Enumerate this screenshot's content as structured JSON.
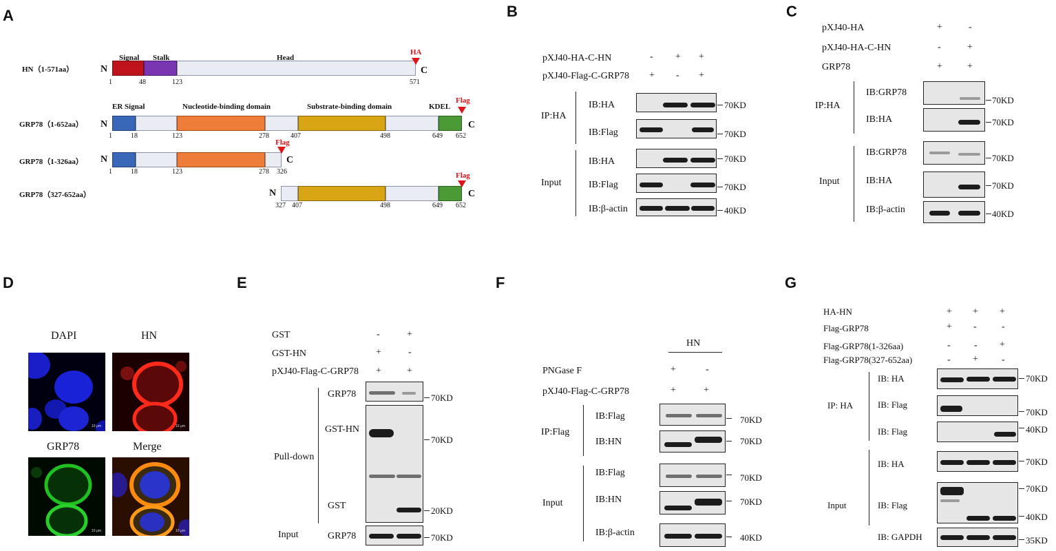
{
  "panels": [
    "A",
    "B",
    "C",
    "D",
    "E",
    "F",
    "G"
  ],
  "panelA": {
    "rows": [
      {
        "label": "HN（1-571aa）",
        "n": "N",
        "c": "C"
      },
      {
        "label": "GRP78（1-652aa）",
        "n": "N",
        "c": "C"
      },
      {
        "label": "GRP78（1-326aa）",
        "n": "N",
        "c": "C"
      },
      {
        "label": "GRP78（327-652aa）",
        "n": "N",
        "c": "C"
      }
    ],
    "hn": {
      "domains": [
        "Signal",
        "Stalk",
        "Head"
      ],
      "tag": "HA",
      "positions": [
        "1",
        "48",
        "123",
        "571"
      ]
    },
    "grp_full": {
      "domains": [
        "ER Signal",
        "Nucleotide-binding domain",
        "Substrate-binding domain",
        "KDEL"
      ],
      "tag": "Flag",
      "positions": [
        "1",
        "18",
        "123",
        "278",
        "407",
        "498",
        "649",
        "652"
      ]
    },
    "grp_n": {
      "tag": "Flag",
      "positions": [
        "1",
        "18",
        "123",
        "278",
        "326"
      ]
    },
    "grp_c": {
      "tag": "Flag",
      "positions": [
        "327",
        "407",
        "498",
        "649",
        "652"
      ]
    }
  },
  "panelB": {
    "conditions": [
      {
        "name": "pXJ40-HA-C-HN",
        "vals": [
          "-",
          "+",
          "+"
        ]
      },
      {
        "name": "pXJ40-Flag-C-GRP78",
        "vals": [
          "+",
          "-",
          "+"
        ]
      }
    ],
    "groups": [
      "IP:HA",
      "Input"
    ],
    "blots": [
      "IB:HA",
      "IB:Flag",
      "IB:HA",
      "IB:Flag",
      "IB:β-actin"
    ],
    "markers": [
      "70KD",
      "70KD",
      "70KD",
      "70KD",
      "40KD"
    ]
  },
  "panelC": {
    "conditions": [
      {
        "name": "pXJ40-HA",
        "vals": [
          "+",
          "-"
        ]
      },
      {
        "name": "pXJ40-HA-C-HN",
        "vals": [
          "-",
          "+"
        ]
      },
      {
        "name": "GRP78",
        "vals": [
          "+",
          "+"
        ]
      }
    ],
    "groups": [
      "IP:HA",
      "Input"
    ],
    "blots": [
      "IB:GRP78",
      "IB:HA",
      "IB:GRP78",
      "IB:HA",
      "IB:β-actin"
    ],
    "markers": [
      "70KD",
      "70KD",
      "70KD",
      "70KD",
      "40KD"
    ]
  },
  "panelD": {
    "titles": [
      "DAPI",
      "HN",
      "GRP78",
      "Merge"
    ],
    "scale": "10 μm"
  },
  "panelE": {
    "conditions": [
      {
        "name": "GST",
        "vals": [
          "-",
          "+"
        ]
      },
      {
        "name": "GST-HN",
        "vals": [
          "+",
          "-"
        ]
      },
      {
        "name": "pXJ40-Flag-C-GRP78",
        "vals": [
          "+",
          "+"
        ]
      }
    ],
    "groups": [
      "Pull-down",
      "Input"
    ],
    "blots": [
      "GRP78",
      "GST-HN",
      "GST",
      "GRP78"
    ],
    "markers": [
      "70KD",
      "70KD",
      "20KD",
      "70KD"
    ]
  },
  "panelF": {
    "header": "HN",
    "conditions": [
      {
        "name": "PNGase F",
        "vals": [
          "+",
          "-"
        ]
      },
      {
        "name": "pXJ40-Flag-C-GRP78",
        "vals": [
          "+",
          "+"
        ]
      }
    ],
    "groups": [
      "IP:Flag",
      "Input"
    ],
    "blots": [
      "IB:Flag",
      "IB:HN",
      "IB:Flag",
      "IB:HN",
      "IB:β-actin"
    ],
    "markers": [
      "70KD",
      "70KD",
      "70KD",
      "70KD",
      "40KD"
    ]
  },
  "panelG": {
    "conditions": [
      {
        "name": "HA-HN",
        "vals": [
          "+",
          "+",
          "+"
        ]
      },
      {
        "name": "Flag-GRP78",
        "vals": [
          "+",
          "-",
          "-"
        ]
      },
      {
        "name": "Flag-GRP78(1-326aa)",
        "vals": [
          "-",
          "-",
          "+"
        ]
      },
      {
        "name": "Flag-GRP78(327-652aa)",
        "vals": [
          "-",
          "+",
          "-"
        ]
      }
    ],
    "groups": [
      "IP: HA",
      "Input"
    ],
    "blots": [
      "IB: HA",
      "IB: Flag",
      "IB: Flag",
      "IB: HA",
      "IB: Flag",
      "IB: GAPDH"
    ],
    "markers": [
      "70KD",
      "70KD",
      "40KD",
      "70KD",
      "70KD",
      "40KD",
      "35KD"
    ]
  },
  "colors": {
    "signal": "#c0141c",
    "stalk": "#7a35b0",
    "head": "#e9ecf3",
    "er": "#3a68b8",
    "nbd": "#ee7d3a",
    "sbd": "#d8a514",
    "kdel": "#4a9a35",
    "tag": "#e0141b"
  }
}
